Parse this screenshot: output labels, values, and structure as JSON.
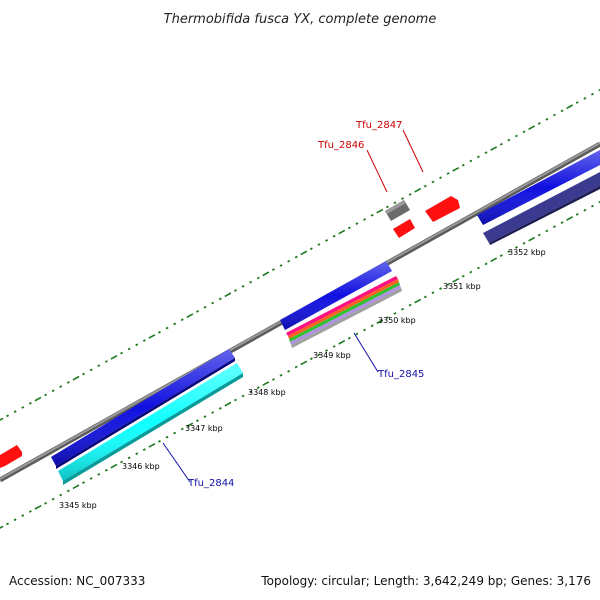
{
  "title": "Thermobifida fusca YX, complete genome",
  "footer": {
    "accession": "Accession: NC_007333",
    "stats": "Topology: circular; Length: 3,642,249 bp; Genes: 3,176"
  },
  "tick_labels": [
    "3345 kbp",
    "3346 kbp",
    "3347 kbp",
    "3348 kbp",
    "3349 kbp",
    "3350 kbp",
    "3351 kbp",
    "3352 kbp"
  ],
  "gene_labels": [
    {
      "text": "Tfu_2844",
      "color": "#1010a8"
    },
    {
      "text": "Tfu_2845",
      "color": "#1010a8"
    },
    {
      "text": "Tfu_2846",
      "color": "#cc0000"
    },
    {
      "text": "Tfu_2847",
      "color": "#cc0000"
    }
  ],
  "colors": {
    "backbone": "#8a8a8a",
    "tick": "#1e7a1e",
    "cds_forward": "#1010e0",
    "cds_reverse": "#ff1010",
    "track_cyan": "#10ffff",
    "track_navy": "#3a3a90",
    "track_gray": "#6a6a6a"
  }
}
